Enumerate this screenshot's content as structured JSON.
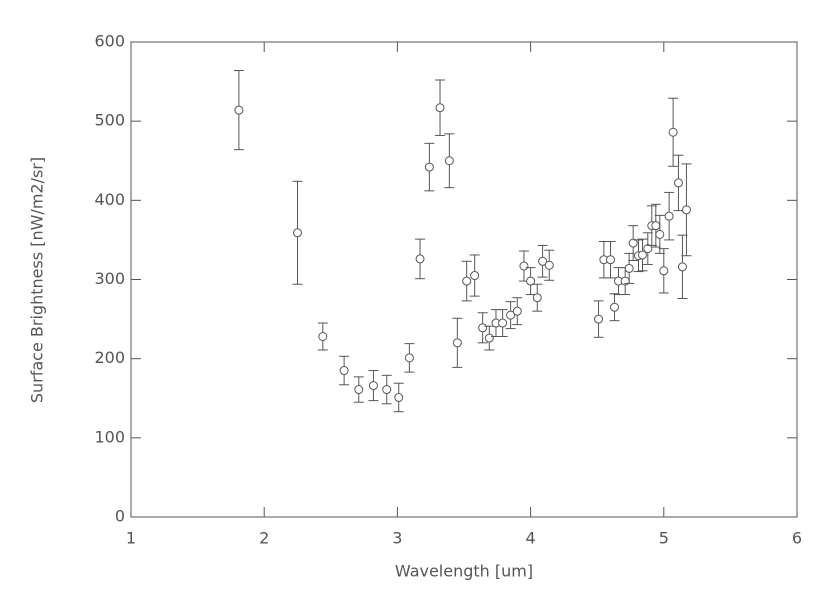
{
  "chart_data": {
    "type": "scatter",
    "x_label": "Wavelength [um]",
    "y_label": "Surface Brightness [nW/m2/sr]",
    "x": [
      1.81,
      2.25,
      2.44,
      2.6,
      2.71,
      2.82,
      2.92,
      3.01,
      3.09,
      3.17,
      3.24,
      3.32,
      3.39,
      3.45,
      3.52,
      3.58,
      3.64,
      3.69,
      3.74,
      3.79,
      3.85,
      3.9,
      3.95,
      4.0,
      4.05,
      4.09,
      4.14,
      4.51,
      4.55,
      4.6,
      4.63,
      4.66,
      4.71,
      4.74,
      4.77,
      4.81,
      4.84,
      4.88,
      4.91,
      4.94,
      4.97,
      5.0,
      5.04,
      5.07,
      5.11,
      5.14,
      5.17
    ],
    "series": [
      {
        "color": "#555555",
        "values": [
          514,
          359,
          228,
          185,
          161,
          166,
          161,
          151,
          201,
          326,
          442,
          517,
          450,
          220,
          298,
          305,
          239,
          226,
          245,
          245,
          255,
          260,
          317,
          298,
          277,
          323,
          318,
          250,
          325,
          325,
          265,
          298,
          298,
          314,
          346,
          330,
          331,
          339,
          368,
          368,
          357,
          311,
          380,
          486,
          422,
          316,
          388
        ],
        "errors": [
          50,
          65,
          17,
          18,
          16,
          19,
          18,
          18,
          18,
          25,
          30,
          35,
          34,
          31,
          25,
          26,
          19,
          15,
          17,
          17,
          17,
          17,
          19,
          17,
          17,
          20,
          19,
          23,
          23,
          23,
          17,
          17,
          17,
          19,
          22,
          20,
          20,
          20,
          25,
          27,
          24,
          28,
          30,
          43,
          35,
          40,
          58
        ]
      }
    ],
    "xlim": [
      1,
      6
    ],
    "xticks": [
      1,
      2,
      3,
      4,
      5,
      6
    ],
    "ylim": [
      0,
      600
    ],
    "yticks": [
      0,
      100,
      200,
      300,
      400,
      500,
      600
    ]
  }
}
